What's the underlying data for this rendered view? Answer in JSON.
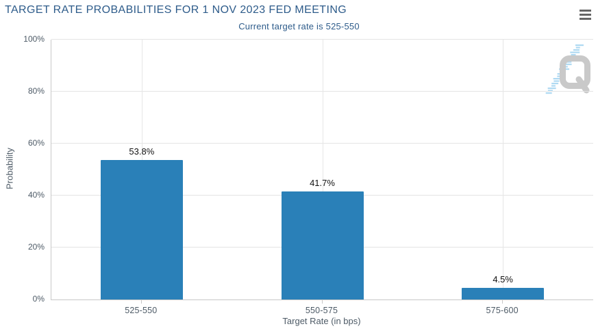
{
  "header": {
    "title": "TARGET RATE PROBABILITIES FOR 1 NOV 2023 FED MEETING",
    "subtitle": "Current target rate is 525-550"
  },
  "menu": {
    "icon": "hamburger-menu-icon"
  },
  "watermark": {
    "icon": "quikstrike-q-logo"
  },
  "chart_data": {
    "type": "bar",
    "title": "TARGET RATE PROBABILITIES FOR 1 NOV 2023 FED MEETING",
    "subtitle": "Current target rate is 525-550",
    "categories": [
      "525-550",
      "550-575",
      "575-600"
    ],
    "values": [
      53.8,
      41.7,
      4.5
    ],
    "value_labels": [
      "53.8%",
      "41.7%",
      "4.5%"
    ],
    "xlabel": "Target Rate (in bps)",
    "ylabel": "Probability",
    "ylim": [
      0,
      100
    ],
    "y_tick_step": 20,
    "y_tick_labels": [
      "0%",
      "20%",
      "40%",
      "60%",
      "80%",
      "100%"
    ],
    "grid": true,
    "legend": "none"
  },
  "colors": {
    "title_text": "#2d5b8a",
    "axis_text": "#4d5a66",
    "data_label": "#111111",
    "bar": "#2a80b8",
    "gridline": "#e4e4e4",
    "axis_line": "#c6c6c6",
    "menu_icon": "#666666",
    "watermark_gray": "#c9c9c9",
    "watermark_blue": "#aed9f2",
    "background": "#ffffff"
  }
}
